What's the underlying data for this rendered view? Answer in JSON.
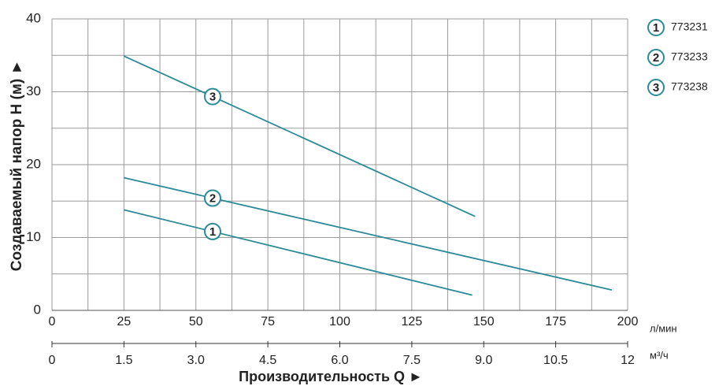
{
  "chart_data": {
    "type": "line",
    "y_label": "Создаваемый напор Н (м) ►",
    "x_label": "Производительность Q ►",
    "x_unit": "л/мин",
    "x2_unit": "м³/ч",
    "xlim": [
      0,
      200
    ],
    "xticks": [
      0,
      25,
      50,
      75,
      100,
      125,
      150,
      175,
      200
    ],
    "x2lim": [
      0,
      12
    ],
    "x2ticks": [
      0,
      1.5,
      {
        "value": 3,
        "label": "3.0"
      },
      4.5,
      {
        "value": 6,
        "label": "6.0"
      },
      7.5,
      {
        "value": 9,
        "label": "9.0"
      },
      10.5,
      12
    ],
    "ylim": [
      0,
      40
    ],
    "yticks": [
      0,
      10,
      20,
      30,
      40
    ],
    "grid": true,
    "series": [
      {
        "name": "773231",
        "marker": "1",
        "color": "#2a8a98",
        "x": [
          25,
          146
        ],
        "values": [
          13.8,
          2.1
        ]
      },
      {
        "name": "773233",
        "marker": "2",
        "color": "#2a8a98",
        "x": [
          25,
          194.5
        ],
        "values": [
          18.2,
          2.8
        ]
      },
      {
        "name": "773238",
        "marker": "3",
        "color": "#2a8a98",
        "x": [
          25,
          147
        ],
        "values": [
          34.9,
          12.9
        ]
      }
    ]
  }
}
